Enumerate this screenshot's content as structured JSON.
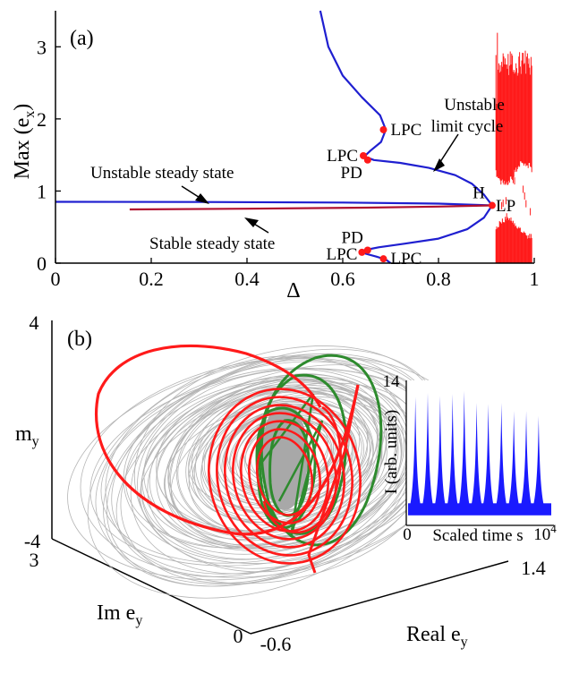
{
  "chart_data": [
    {
      "panel": "(a)",
      "type": "line",
      "xlabel": "Δ",
      "ylabel": "Max (e",
      "ylabel_sub": "x",
      "ylabel_close": ")",
      "xlim": [
        0,
        1
      ],
      "ylim": [
        0,
        3.5
      ],
      "xticks": [
        "0",
        "0.2",
        "0.4",
        "0.6",
        "0.8",
        "1"
      ],
      "yticks": [
        "0",
        "1",
        "2",
        "3"
      ],
      "series": [
        {
          "color": "#1f1fd0",
          "style": "unstable",
          "segments": [
            [
              [
                0.0,
                0.85
              ],
              [
                0.3,
                0.848
              ],
              [
                0.6,
                0.84
              ],
              [
                0.8,
                0.825
              ],
              [
                0.912,
                0.8
              ]
            ],
            [
              [
                0.912,
                0.8
              ],
              [
                0.895,
                0.95
              ],
              [
                0.87,
                1.1
              ],
              [
                0.835,
                1.22
              ],
              [
                0.78,
                1.32
              ],
              [
                0.72,
                1.39
              ],
              [
                0.665,
                1.43
              ],
              [
                0.645,
                1.48
              ],
              [
                0.658,
                1.56
              ],
              [
                0.68,
                1.68
              ],
              [
                0.69,
                1.85
              ],
              [
                0.678,
                2.05
              ],
              [
                0.64,
                2.3
              ],
              [
                0.6,
                2.6
              ],
              [
                0.57,
                3.0
              ],
              [
                0.553,
                3.5
              ]
            ],
            [
              [
                0.912,
                0.8
              ],
              [
                0.895,
                0.63
              ],
              [
                0.86,
                0.47
              ],
              [
                0.8,
                0.34
              ],
              [
                0.73,
                0.27
              ],
              [
                0.675,
                0.22
              ],
              [
                0.645,
                0.18
              ],
              [
                0.648,
                0.13
              ],
              [
                0.67,
                0.09
              ],
              [
                0.69,
                0.05
              ],
              [
                0.7,
                0.0
              ]
            ]
          ]
        },
        {
          "color": "#b01030",
          "style": "stable",
          "segments": [
            [
              [
                0.155,
                0.745
              ],
              [
                0.4,
                0.755
              ],
              [
                0.65,
                0.77
              ],
              [
                0.8,
                0.785
              ],
              [
                0.912,
                0.8
              ]
            ]
          ]
        }
      ],
      "chaos_band": {
        "x": [
          0.92,
          0.995
        ],
        "color": "#ff1a1a"
      },
      "points": [
        {
          "label": "LPC",
          "x": 0.685,
          "y": 1.85
        },
        {
          "label": "LPC",
          "x": 0.643,
          "y": 1.49
        },
        {
          "label": "PD",
          "x": 0.652,
          "y": 1.43
        },
        {
          "label": "H",
          "x": 0.912,
          "y": 0.8
        },
        {
          "label": "PD",
          "x": 0.652,
          "y": 0.18
        },
        {
          "label": "LPC",
          "x": 0.64,
          "y": 0.15
        },
        {
          "label": "LPC",
          "x": 0.685,
          "y": 0.06
        }
      ],
      "annotations": {
        "unstable_cycle_line1": "Unstable",
        "unstable_cycle_line2": "limit cycle",
        "unstable_steady": "Unstable steady state",
        "stable_steady": "Stable steady state",
        "lp": "LP"
      }
    },
    {
      "panel": "(b)",
      "type": "line",
      "subtype": "3d-trajectory",
      "axes": {
        "my_label": "m",
        "my_sub": "y",
        "im_label": "Im e",
        "im_sub": "y",
        "re_label": "Real e",
        "re_sub": "y",
        "my_ticks": [
          "4",
          "-4"
        ],
        "im_ticks": [
          "3",
          "0"
        ],
        "re_ticks": [
          "-0.6",
          "1.4"
        ]
      },
      "colors": {
        "grey": "#b5b5b5",
        "red": "#ff1a1a",
        "green": "#2e8b2e"
      },
      "inset": {
        "ylabel": "I (arb. units)",
        "xlabel": "Scaled time s",
        "yticks": [
          "14",
          "0"
        ],
        "xticks": [
          "0",
          "10"
        ],
        "x_exp": "4",
        "ylim": [
          0,
          14
        ],
        "xlim": [
          0,
          10000
        ],
        "color": "#1a1aff",
        "spike_peaks": [
          12.8,
          13.2,
          12.9,
          13.1,
          13.4,
          12.2,
          12.1,
          12.2,
          11.4,
          11.4,
          10.9
        ],
        "spike_times": [
          500,
          1350,
          2200,
          3050,
          3850,
          4700,
          5500,
          6400,
          7250,
          8100,
          8950
        ],
        "baseline": 1.6
      }
    }
  ]
}
